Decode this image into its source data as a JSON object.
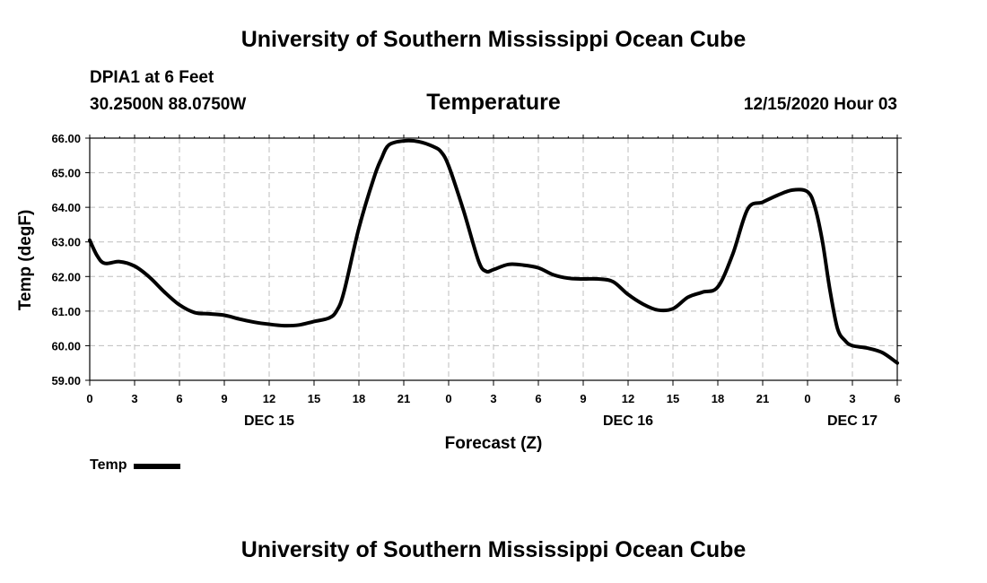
{
  "header": {
    "title_top": "University of Southern Mississippi Ocean Cube",
    "title_bottom": "University of Southern Mississippi Ocean Cube",
    "station": "DPIA1 at 6 Feet",
    "coords": "30.2500N 88.0750W",
    "chart_title": "Temperature",
    "datetime": "12/15/2020 Hour 03"
  },
  "legend": {
    "label": "Temp",
    "color": "#000000"
  },
  "chart_data": {
    "type": "line",
    "title": "Temperature",
    "xlabel": "Forecast (Z)",
    "ylabel": "Temp (degF)",
    "xlim": [
      0,
      54
    ],
    "ylim": [
      59.0,
      66.0
    ],
    "x_tick_step_hours": 3,
    "x_tick_labels": [
      "0",
      "3",
      "6",
      "9",
      "12",
      "15",
      "18",
      "21",
      "0",
      "3",
      "6",
      "9",
      "12",
      "15",
      "18",
      "21",
      "0",
      "3",
      "6"
    ],
    "y_tick_values": [
      59.0,
      60.0,
      61.0,
      62.0,
      63.0,
      64.0,
      65.0,
      66.0
    ],
    "y_tick_labels": [
      "59.00",
      "60.00",
      "61.00",
      "62.00",
      "63.00",
      "64.00",
      "65.00",
      "66.00"
    ],
    "day_labels": [
      {
        "x": 12,
        "label": "DEC 15"
      },
      {
        "x": 36,
        "label": "DEC 16"
      },
      {
        "x": 51,
        "label": "DEC 17"
      }
    ],
    "grid": true,
    "series": [
      {
        "name": "Temp",
        "x": [
          0,
          0.5,
          1,
          2,
          3,
          4,
          5,
          6,
          7,
          8,
          9,
          10,
          11,
          12,
          13,
          14,
          15,
          16,
          16.5,
          17,
          18,
          19,
          19.5,
          20,
          21,
          22,
          23,
          23.5,
          24,
          25,
          26,
          26.5,
          27,
          28,
          29,
          30,
          31,
          32,
          33,
          34,
          35,
          36,
          37,
          38,
          39,
          40,
          41,
          42,
          43,
          44,
          45,
          46,
          47,
          48,
          48.5,
          49,
          49.5,
          50,
          50.5,
          51,
          52,
          53,
          54
        ],
        "values": [
          63.05,
          62.6,
          62.38,
          62.43,
          62.3,
          61.98,
          61.55,
          61.18,
          60.96,
          60.92,
          60.88,
          60.77,
          60.68,
          60.62,
          60.58,
          60.6,
          60.7,
          60.8,
          61.0,
          61.55,
          63.4,
          64.85,
          65.4,
          65.8,
          65.92,
          65.9,
          65.75,
          65.6,
          65.2,
          63.9,
          62.45,
          62.15,
          62.2,
          62.35,
          62.33,
          62.25,
          62.05,
          61.95,
          61.93,
          61.93,
          61.85,
          61.48,
          61.2,
          61.03,
          61.07,
          61.4,
          61.55,
          61.7,
          62.65,
          63.95,
          64.15,
          64.35,
          64.5,
          64.45,
          64.0,
          63.0,
          61.6,
          60.5,
          60.15,
          60.0,
          59.93,
          59.8,
          59.5
        ]
      }
    ]
  }
}
